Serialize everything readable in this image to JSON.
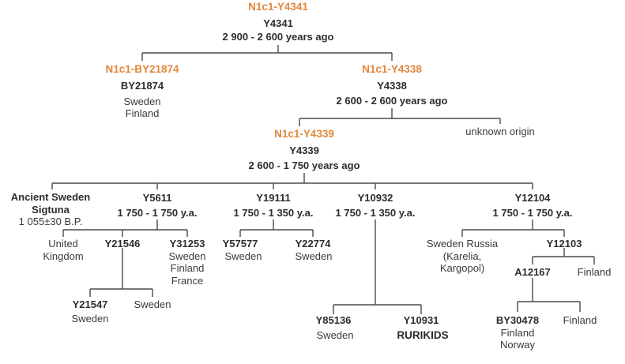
{
  "colors": {
    "haplogroup": "#e2873b",
    "text": "#333333",
    "line": "#4a4a4a"
  },
  "nodes": {
    "root": {
      "haplogroup": "N1c1-Y4341",
      "snp": "Y4341",
      "age": "2 900 - 2 600 years ago"
    },
    "by21874": {
      "haplogroup": "N1c1-BY21874",
      "snp": "BY21874",
      "loc1": "Sweden",
      "loc2": "Finland"
    },
    "y4338": {
      "haplogroup": "N1c1-Y4338",
      "snp": "Y4338",
      "age": "2 600 -  2 600 years ago"
    },
    "unknown": {
      "label": "unknown origin"
    },
    "y4339": {
      "haplogroup": "N1c1-Y4339",
      "snp": "Y4339",
      "age": "2 600 - 1 750 years ago"
    },
    "ancient": {
      "line1": "Ancient Sweden",
      "line2": "Sigtuna",
      "line3": "1 055±30 B.P."
    },
    "y5611": {
      "snp": "Y5611",
      "age": "1 750 - 1 750 y.a."
    },
    "y19111": {
      "snp": "Y19111",
      "age": "1 750 - 1 350 y.a."
    },
    "y10932": {
      "snp": "Y10932",
      "age": "1 750 - 1 350 y.a."
    },
    "y12104": {
      "snp": "Y12104",
      "age": "1 750 - 1 750 y.a."
    },
    "uk": {
      "line1": "United",
      "line2": "Kingdom"
    },
    "y21546": {
      "snp": "Y21546"
    },
    "y31253": {
      "snp": "Y31253",
      "loc1": "Sweden",
      "loc2": "Finland",
      "loc3": "France"
    },
    "y57577": {
      "snp": "Y57577",
      "loc1": "Sweden"
    },
    "y22774": {
      "snp": "Y22774",
      "loc1": "Sweden"
    },
    "sweden_russia": {
      "line1": "Sweden Russia",
      "line2": "(Karelia,",
      "line3": "Kargopol)"
    },
    "y12103": {
      "snp": "Y12103"
    },
    "y21547": {
      "snp": "Y21547",
      "loc1": "Sweden"
    },
    "sweden_a": {
      "label": "Sweden"
    },
    "a12167": {
      "snp": "A12167"
    },
    "finland_a": {
      "label": "Finland"
    },
    "y85136": {
      "snp": "Y85136",
      "loc1": "Sweden"
    },
    "y10931": {
      "snp": "Y10931",
      "loc1": "RURIKIDS"
    },
    "by30478": {
      "snp": "BY30478",
      "loc1": "Finland",
      "loc2": "Norway"
    },
    "finland_b": {
      "label": "Finland"
    }
  }
}
